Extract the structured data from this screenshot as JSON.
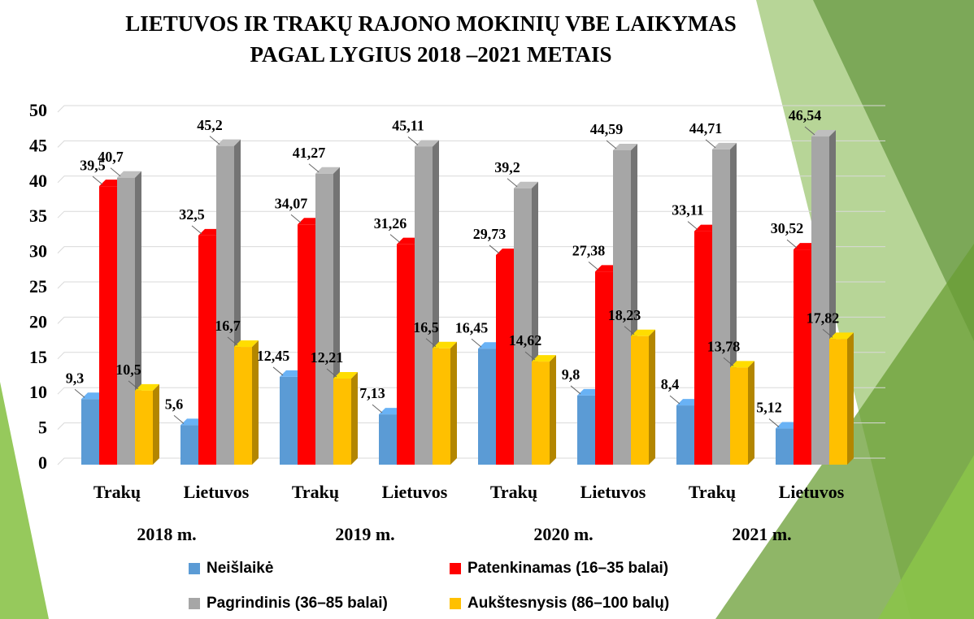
{
  "chart_data": {
    "type": "bar3d",
    "title": [
      "LIETUVOS IR TRAKŲ RAJONO MOKINIŲ VBE LAIKYMAS",
      "PAGAL LYGIUS 2018 –2021 METAIS"
    ],
    "categories": [
      "Trakų",
      "Lietuvos",
      "Trakų",
      "Lietuvos",
      "Trakų",
      "Lietuvos",
      "Trakų",
      "Lietuvos"
    ],
    "group_labels": [
      "2018 m.",
      "2019 m.",
      "2020 m.",
      "2021 m."
    ],
    "series": [
      {
        "name": "Neišlaikė",
        "color": "#5b9bd5",
        "values": [
          9.3,
          5.6,
          12.45,
          7.13,
          16.45,
          9.8,
          8.4,
          5.12
        ],
        "value_labels": [
          "9,3",
          "5,6",
          "12,45",
          "7,13",
          "16,45",
          "9,8",
          "8,4",
          "5,12"
        ]
      },
      {
        "name": "Patenkinamas (16–35 balai)",
        "color": "#ff0000",
        "values": [
          39.5,
          32.5,
          34.07,
          31.26,
          29.73,
          27.38,
          33.11,
          30.52
        ],
        "value_labels": [
          "39,5",
          "32,5",
          "34,07",
          "31,26",
          "29,73",
          "27,38",
          "33,11",
          "30,52"
        ]
      },
      {
        "name": "Pagrindinis (36–85 balai)",
        "color": "#a6a6a6",
        "values": [
          40.7,
          45.2,
          41.27,
          45.11,
          39.2,
          44.59,
          44.71,
          46.54
        ],
        "value_labels": [
          "40,7",
          "45,2",
          "41,27",
          "45,11",
          "39,2",
          "44,59",
          "44,71",
          "46,54"
        ]
      },
      {
        "name": "Aukštesnysis (86–100 balų)",
        "color": "#ffc000",
        "values": [
          10.5,
          16.7,
          12.21,
          16.5,
          14.62,
          18.23,
          13.78,
          17.82
        ],
        "value_labels": [
          "10,5",
          "16,7",
          "12,21",
          "16,5",
          "14,62",
          "18,23",
          "13,78",
          "17,82"
        ]
      }
    ],
    "ylim": [
      0,
      50
    ],
    "yticks": [
      0,
      5,
      10,
      15,
      20,
      25,
      30,
      35,
      40,
      45,
      50
    ],
    "grid": true
  }
}
